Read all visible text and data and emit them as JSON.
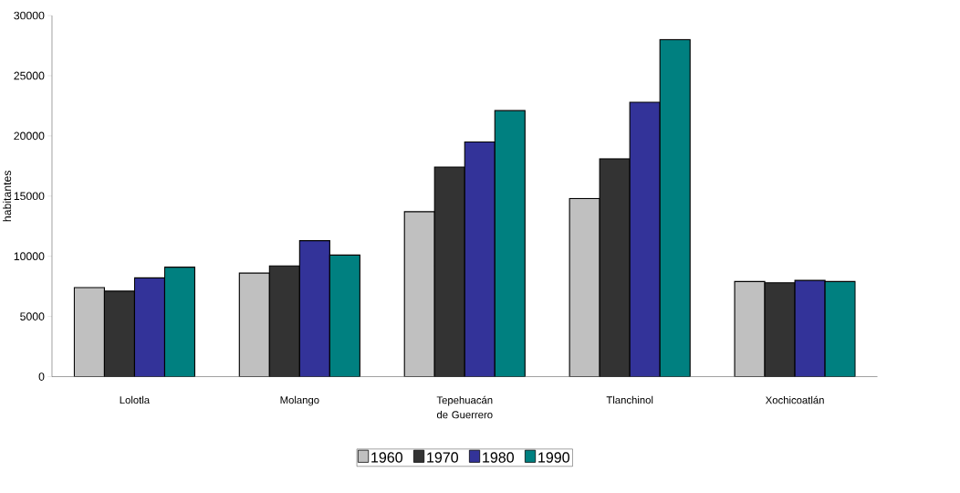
{
  "chart_data": {
    "type": "bar",
    "ylabel": "habitantes",
    "categories": [
      "Lolotla",
      "Molango",
      "Tepehuacán de Guerrero",
      "Tlanchinol",
      "Xochicoatlán"
    ],
    "series": [
      {
        "name": "1960",
        "color": "#c0c0c0",
        "values": [
          7400,
          8600,
          13700,
          14800,
          7900
        ]
      },
      {
        "name": "1970",
        "color": "#333333",
        "values": [
          7100,
          9200,
          17400,
          18100,
          7800
        ]
      },
      {
        "name": "1980",
        "color": "#333399",
        "values": [
          8200,
          11300,
          19500,
          22800,
          8000
        ]
      },
      {
        "name": "1990",
        "color": "#008080",
        "values": [
          9100,
          10100,
          22100,
          28000,
          7900
        ]
      }
    ],
    "ylim": [
      0,
      30000
    ],
    "yticks": [
      0,
      5000,
      10000,
      15000,
      20000,
      25000,
      30000
    ],
    "legend": "bottom"
  }
}
